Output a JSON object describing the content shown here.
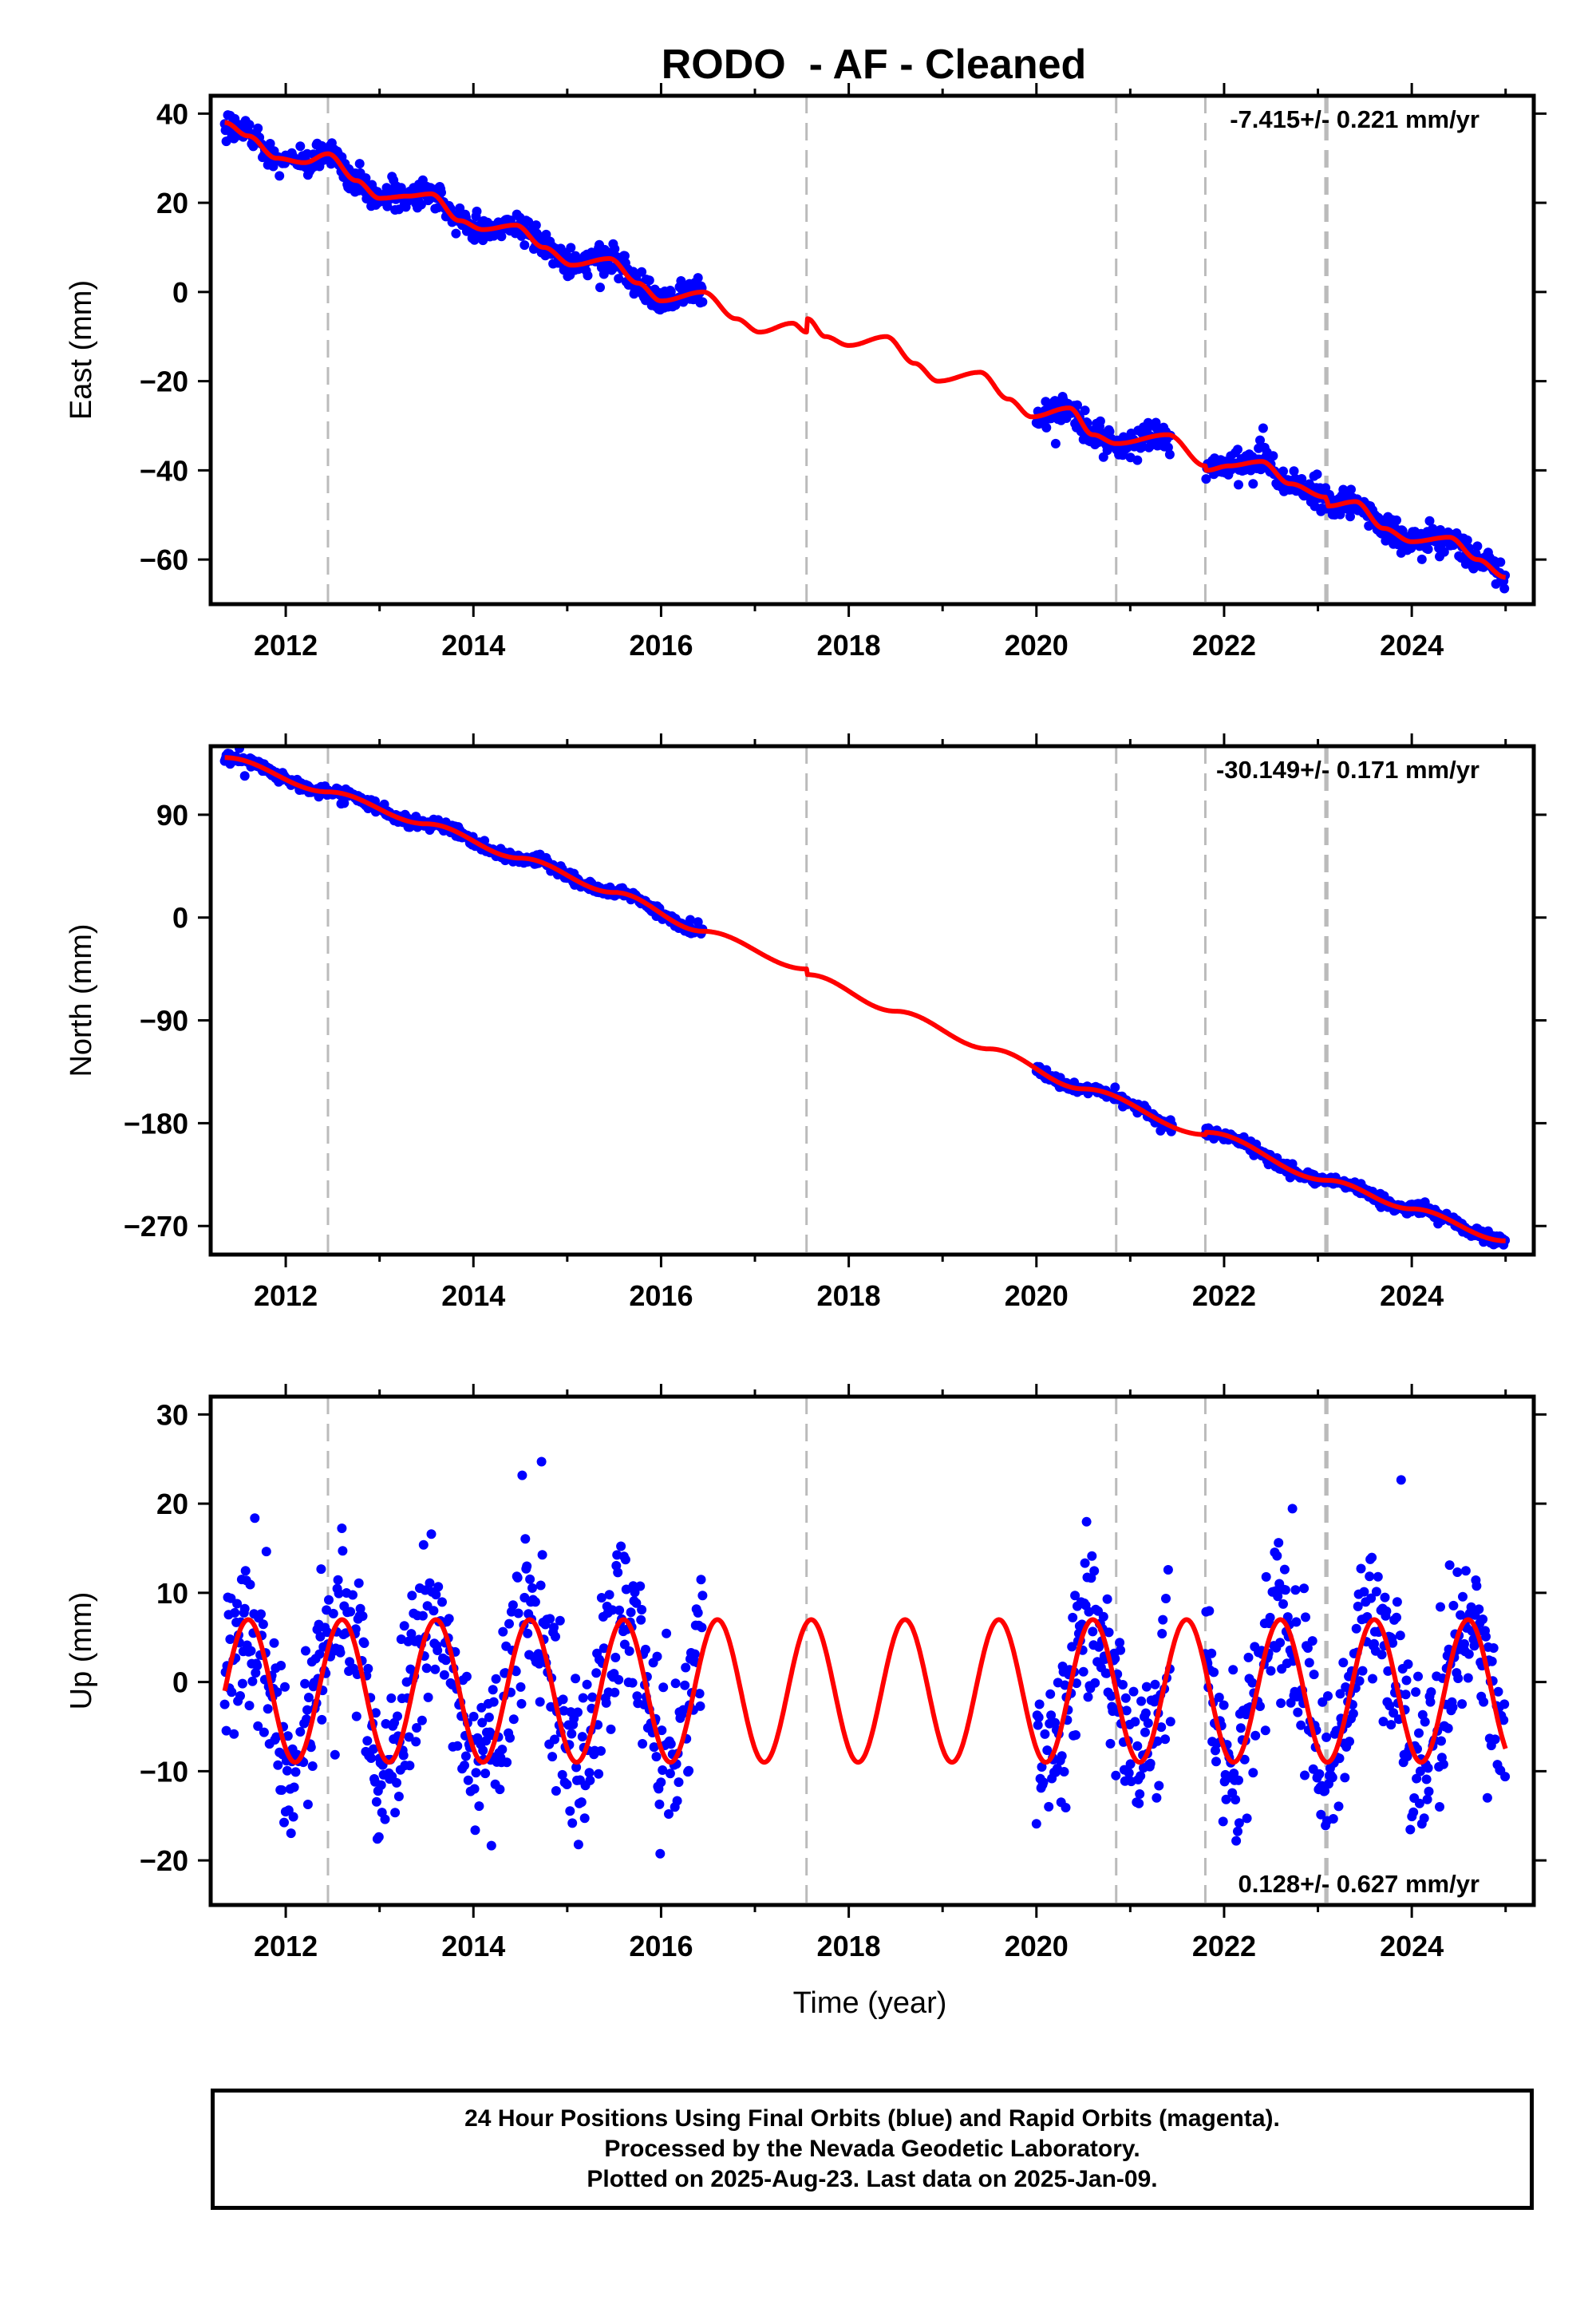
{
  "title": "RODO  - AF - Cleaned",
  "footer": {
    "line1": "24 Hour Positions Using Final Orbits (blue) and Rapid Orbits (magenta).",
    "line2": "Processed by the Nevada Geodetic Laboratory.",
    "line3": "Plotted on 2025-Aug-23. Last data on 2025-Jan-09."
  },
  "colors": {
    "observed": "#0000ff",
    "model": "#ff0000",
    "event_line": "#bbbbbb",
    "frame": "#000000"
  },
  "chart_data": [
    {
      "type": "scatter",
      "panel": "east",
      "ylabel": "East (mm)",
      "xlabel": "",
      "xlim": [
        2011.2,
        2025.3
      ],
      "ylim": [
        -70,
        44
      ],
      "xticks": [
        2012,
        2014,
        2016,
        2018,
        2020,
        2022,
        2024
      ],
      "yticks": [
        -60,
        -40,
        -20,
        0,
        20,
        40
      ],
      "yticklabels": [
        "−60",
        "−40",
        "−20",
        "0",
        "20",
        "40"
      ],
      "rate_text": "-7.415+/- 0.221 mm/yr",
      "rate_position": "top-right",
      "event_lines": [
        2012.45,
        2017.55,
        2020.85,
        2021.8,
        2023.08,
        2023.1
      ],
      "data_segments": [
        [
          2011.35,
          2016.45
        ],
        [
          2020.0,
          2021.45
        ],
        [
          2021.8,
          2025.0
        ]
      ],
      "model_knots": [
        [
          2011.35,
          38
        ],
        [
          2011.6,
          35
        ],
        [
          2011.9,
          30
        ],
        [
          2012.2,
          29
        ],
        [
          2012.45,
          31
        ],
        [
          2012.75,
          25
        ],
        [
          2013.0,
          21
        ],
        [
          2013.3,
          21.5
        ],
        [
          2013.55,
          22
        ],
        [
          2013.85,
          16
        ],
        [
          2014.1,
          14
        ],
        [
          2014.45,
          15
        ],
        [
          2014.75,
          10
        ],
        [
          2015.05,
          6
        ],
        [
          2015.45,
          7.5
        ],
        [
          2015.75,
          2
        ],
        [
          2016.0,
          -2
        ],
        [
          2016.45,
          0
        ],
        [
          2016.8,
          -6
        ],
        [
          2017.05,
          -9
        ],
        [
          2017.4,
          -7
        ],
        [
          2017.55,
          -9
        ],
        [
          2017.56,
          -6
        ],
        [
          2017.75,
          -10
        ],
        [
          2018.0,
          -12
        ],
        [
          2018.4,
          -10
        ],
        [
          2018.7,
          -16
        ],
        [
          2018.95,
          -20
        ],
        [
          2019.4,
          -18
        ],
        [
          2019.7,
          -24
        ],
        [
          2019.95,
          -28
        ],
        [
          2020.35,
          -26
        ],
        [
          2020.6,
          -32
        ],
        [
          2020.85,
          -34
        ],
        [
          2021.4,
          -32
        ],
        [
          2021.8,
          -39
        ],
        [
          2021.81,
          -40
        ],
        [
          2022.05,
          -39
        ],
        [
          2022.4,
          -38
        ],
        [
          2022.7,
          -43
        ],
        [
          2023.08,
          -46
        ],
        [
          2023.1,
          -47
        ],
        [
          2023.11,
          -48
        ],
        [
          2023.4,
          -47
        ],
        [
          2023.7,
          -53
        ],
        [
          2024.0,
          -56
        ],
        [
          2024.4,
          -55
        ],
        [
          2024.7,
          -60
        ],
        [
          2025.0,
          -64
        ]
      ],
      "scatter_noise": 1.6
    },
    {
      "type": "scatter",
      "panel": "north",
      "ylabel": "North (mm)",
      "xlabel": "",
      "xlim": [
        2011.2,
        2025.3
      ],
      "ylim": [
        -295,
        150
      ],
      "xticks": [
        2012,
        2014,
        2016,
        2018,
        2020,
        2022,
        2024
      ],
      "yticks": [
        -270,
        -180,
        -90,
        0,
        90
      ],
      "yticklabels": [
        "−270",
        "−180",
        "−90",
        "0",
        "90"
      ],
      "rate_text": "-30.149+/- 0.171 mm/yr",
      "rate_position": "top-right",
      "event_lines": [
        2012.45,
        2017.55,
        2020.85,
        2021.8,
        2023.08,
        2023.1
      ],
      "data_segments": [
        [
          2011.35,
          2016.45
        ],
        [
          2020.0,
          2021.45
        ],
        [
          2021.8,
          2025.0
        ]
      ],
      "model_knots": [
        [
          2011.35,
          140
        ],
        [
          2012.45,
          110
        ],
        [
          2013.5,
          82
        ],
        [
          2014.5,
          52
        ],
        [
          2015.5,
          22
        ],
        [
          2016.45,
          -12
        ],
        [
          2017.55,
          -45
        ],
        [
          2017.56,
          -50
        ],
        [
          2018.5,
          -82
        ],
        [
          2019.5,
          -115
        ],
        [
          2020.5,
          -150
        ],
        [
          2021.8,
          -190
        ],
        [
          2021.81,
          -188
        ],
        [
          2023.1,
          -230
        ],
        [
          2024.0,
          -255
        ],
        [
          2025.0,
          -283
        ]
      ],
      "scatter_noise": 2.5
    },
    {
      "type": "scatter",
      "panel": "up",
      "ylabel": "Up (mm)",
      "xlabel": "Time (year)",
      "xlim": [
        2011.2,
        2025.3
      ],
      "ylim": [
        -25,
        32
      ],
      "xticks": [
        2012,
        2014,
        2016,
        2018,
        2020,
        2022,
        2024
      ],
      "yticks": [
        -20,
        -10,
        0,
        10,
        20,
        30
      ],
      "yticklabels": [
        "−20",
        "−10",
        "0",
        "10",
        "20",
        "30"
      ],
      "rate_text": "0.128+/- 0.627 mm/yr",
      "rate_position": "bottom-right",
      "event_lines": [
        2012.45,
        2017.55,
        2020.85,
        2021.8,
        2023.08,
        2023.1
      ],
      "data_segments": [
        [
          2011.35,
          2016.45
        ],
        [
          2020.0,
          2021.45
        ],
        [
          2021.8,
          2025.0
        ]
      ],
      "model_seasonal": {
        "offset": -1,
        "amplitude": 8,
        "peak_phase": 0.6,
        "period": 1.0
      },
      "scatter_noise": 4.5
    }
  ]
}
